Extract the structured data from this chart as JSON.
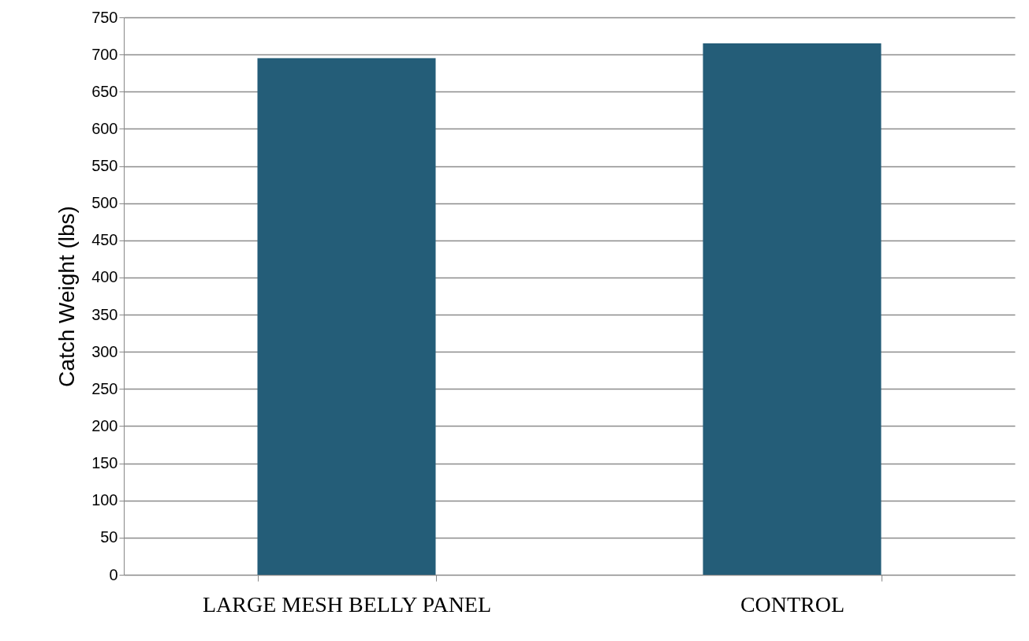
{
  "chart_data": {
    "type": "bar",
    "ylabel": "Catch Weight (lbs)",
    "categories": [
      "LARGE MESH BELLY PANEL",
      "CONTROL"
    ],
    "values": [
      695,
      715
    ],
    "color": "#245d78",
    "ylim": [
      0,
      750
    ],
    "yticks": [
      0,
      50,
      100,
      150,
      200,
      250,
      300,
      350,
      400,
      450,
      500,
      550,
      600,
      650,
      700,
      750
    ],
    "grid": "y"
  }
}
